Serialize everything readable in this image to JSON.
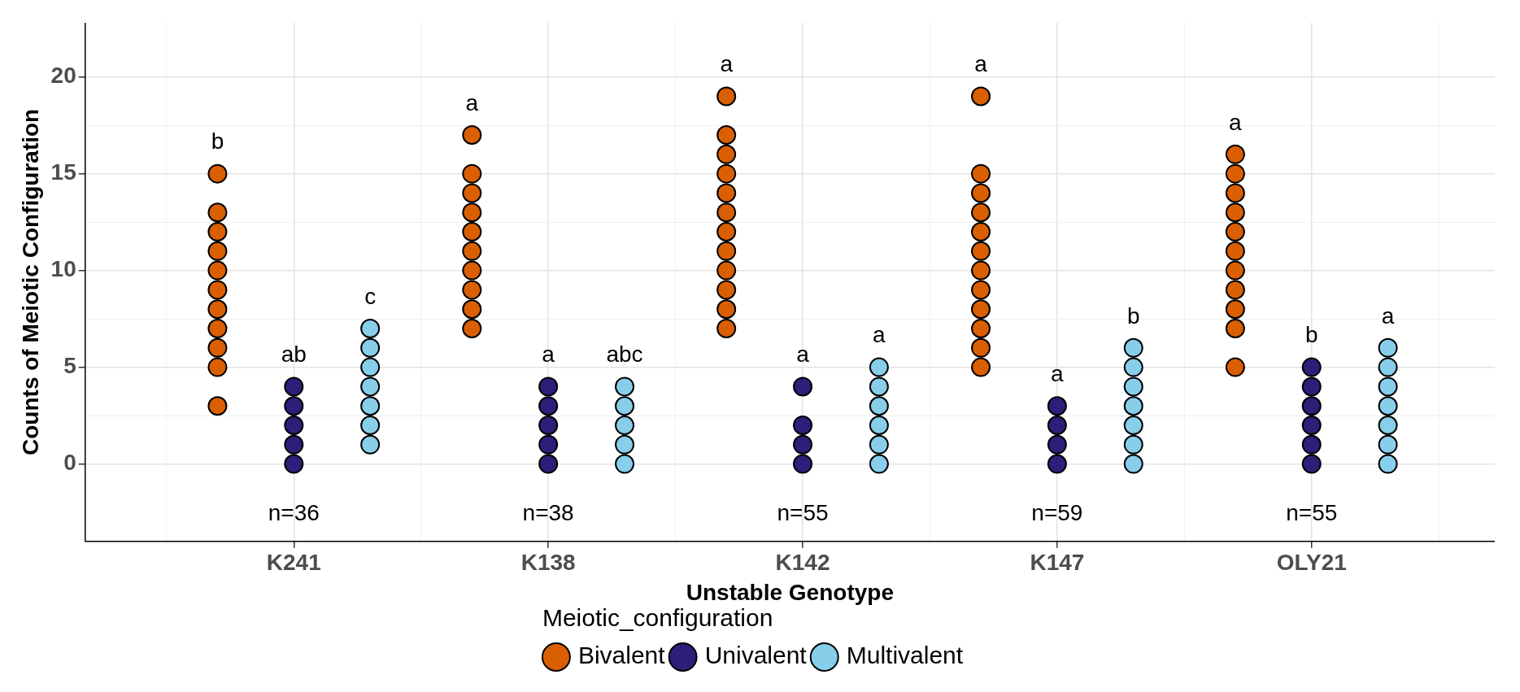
{
  "chart_data": {
    "type": "scatter",
    "xlabel": "Unstable Genotype",
    "ylabel": "Counts of Meiotic Configuration",
    "legend_title": "Meiotic_configuration",
    "legend": "bottom",
    "grid": true,
    "marker": "circle",
    "categories": [
      "K241",
      "K138",
      "K142",
      "K147",
      "OLY21"
    ],
    "ylim": [
      -4,
      22.8
    ],
    "yticks": [
      0,
      5,
      10,
      15,
      20
    ],
    "series": [
      {
        "name": "Bivalent",
        "color": "#d95f02",
        "x": [
          "K241",
          "K241",
          "K241",
          "K241",
          "K241",
          "K241",
          "K241",
          "K241",
          "K241",
          "K241",
          "K241",
          "K138",
          "K138",
          "K138",
          "K138",
          "K138",
          "K138",
          "K138",
          "K138",
          "K138",
          "K138",
          "K142",
          "K142",
          "K142",
          "K142",
          "K142",
          "K142",
          "K142",
          "K142",
          "K142",
          "K142",
          "K142",
          "K142",
          "K147",
          "K147",
          "K147",
          "K147",
          "K147",
          "K147",
          "K147",
          "K147",
          "K147",
          "K147",
          "K147",
          "K147",
          "OLY21",
          "OLY21",
          "OLY21",
          "OLY21",
          "OLY21",
          "OLY21",
          "OLY21",
          "OLY21",
          "OLY21",
          "OLY21",
          "OLY21"
        ],
        "values": [
          3,
          5,
          6,
          7,
          8,
          9,
          10,
          11,
          12,
          13,
          15,
          7,
          8,
          9,
          10,
          11,
          12,
          13,
          14,
          15,
          17,
          7,
          8,
          9,
          10,
          11,
          12,
          13,
          14,
          15,
          16,
          17,
          19,
          5,
          6,
          7,
          8,
          9,
          10,
          11,
          12,
          13,
          14,
          15,
          19,
          5,
          7,
          8,
          9,
          10,
          11,
          12,
          13,
          14,
          15,
          16
        ]
      },
      {
        "name": "Univalent",
        "color": "#2c1f7a",
        "x": [
          "K241",
          "K241",
          "K241",
          "K241",
          "K241",
          "K138",
          "K138",
          "K138",
          "K138",
          "K138",
          "K142",
          "K142",
          "K142",
          "K142",
          "K147",
          "K147",
          "K147",
          "K147",
          "OLY21",
          "OLY21",
          "OLY21",
          "OLY21",
          "OLY21",
          "OLY21"
        ],
        "values": [
          0,
          1,
          2,
          3,
          4,
          0,
          1,
          2,
          3,
          4,
          0,
          1,
          2,
          4,
          0,
          1,
          2,
          3,
          0,
          1,
          2,
          3,
          4,
          5
        ]
      },
      {
        "name": "Multivalent",
        "color": "#87ceeb",
        "x": [
          "K241",
          "K241",
          "K241",
          "K241",
          "K241",
          "K241",
          "K241",
          "K138",
          "K138",
          "K138",
          "K138",
          "K138",
          "K142",
          "K142",
          "K142",
          "K142",
          "K142",
          "K142",
          "K147",
          "K147",
          "K147",
          "K147",
          "K147",
          "K147",
          "K147",
          "OLY21",
          "OLY21",
          "OLY21",
          "OLY21",
          "OLY21",
          "OLY21",
          "OLY21"
        ],
        "values": [
          1,
          2,
          3,
          4,
          5,
          6,
          7,
          0,
          1,
          2,
          3,
          4,
          0,
          1,
          2,
          3,
          4,
          5,
          0,
          1,
          2,
          3,
          4,
          5,
          6,
          0,
          1,
          2,
          3,
          4,
          5,
          6
        ]
      }
    ],
    "annotations": [
      "b",
      "ab",
      "c",
      "a",
      "a",
      "abc",
      "a",
      "a",
      "a",
      "a",
      "a",
      "b",
      "a",
      "b",
      "a",
      "n=36",
      "n=38",
      "n=55",
      "n=59",
      "n=55"
    ]
  }
}
